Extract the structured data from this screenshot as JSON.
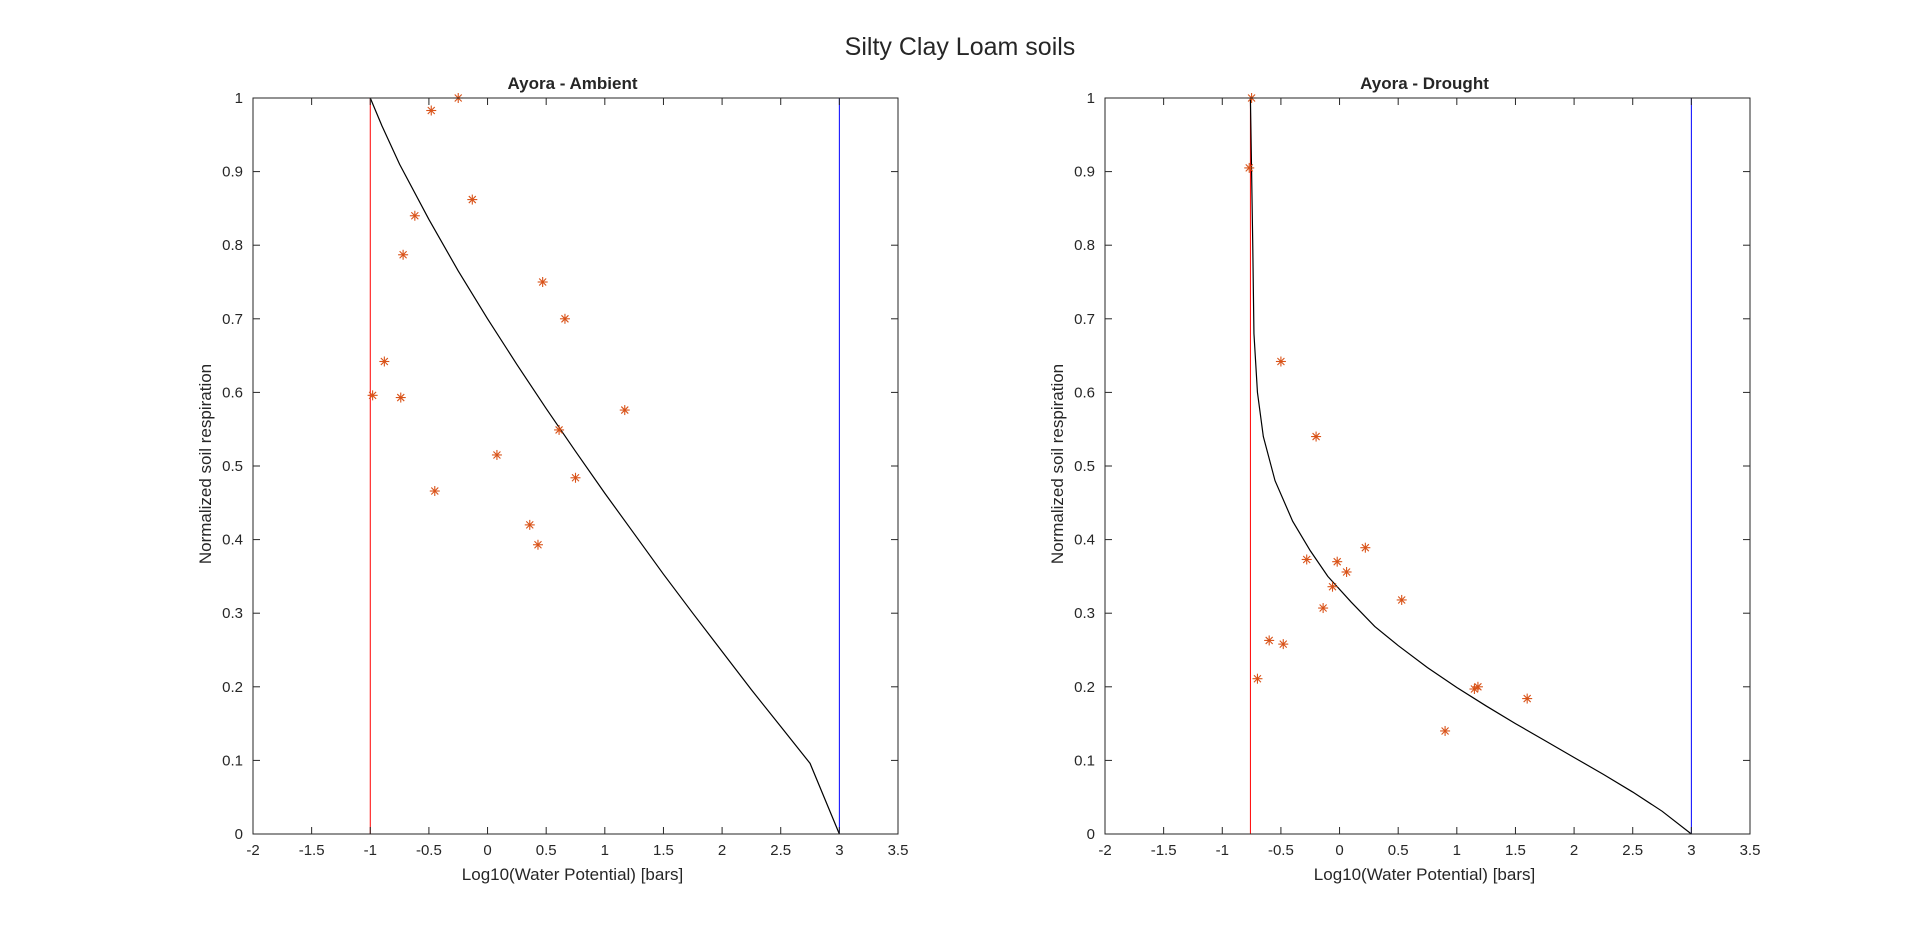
{
  "figure": {
    "title": "Silty Clay Loam soils"
  },
  "chart_data": [
    {
      "type": "scatter",
      "title": "Ayora - Ambient",
      "xlabel": "Log10(Water Potential) [bars]",
      "ylabel": "Normalized soil respiration",
      "xlim": [
        -2,
        3.5
      ],
      "ylim": [
        0,
        1
      ],
      "xticks": [
        -2,
        -1.5,
        -1,
        -0.5,
        0,
        0.5,
        1,
        1.5,
        2,
        2.5,
        3,
        3.5
      ],
      "xtick_labels": [
        "-2",
        "-1.5",
        "-1",
        "-0.5",
        "0",
        "0.5",
        "1",
        "1.5",
        "2",
        "2.5",
        "3",
        "3.5"
      ],
      "yticks": [
        0,
        0.1,
        0.2,
        0.3,
        0.4,
        0.5,
        0.6,
        0.7,
        0.8,
        0.9,
        1
      ],
      "ytick_labels": [
        "0",
        "0.1",
        "0.2",
        "0.3",
        "0.4",
        "0.5",
        "0.6",
        "0.7",
        "0.8",
        "0.9",
        "1"
      ],
      "grid": false,
      "points": {
        "x": [
          -0.25,
          -0.48,
          -0.13,
          -0.62,
          -0.72,
          0.47,
          0.66,
          -0.88,
          -0.98,
          -0.74,
          1.17,
          0.61,
          0.08,
          0.75,
          -0.45,
          0.36,
          0.43
        ],
        "y": [
          1.0,
          0.983,
          0.862,
          0.84,
          0.787,
          0.75,
          0.7,
          0.642,
          0.596,
          0.593,
          0.576,
          0.549,
          0.515,
          0.484,
          0.466,
          0.42,
          0.393
        ],
        "color": "#d95319",
        "marker": "asterisk"
      },
      "curve": {
        "x": [
          -1,
          -0.9,
          -0.75,
          -0.5,
          -0.25,
          0,
          0.25,
          0.5,
          0.75,
          1,
          1.25,
          1.5,
          1.75,
          2,
          2.25,
          2.5,
          2.75,
          3
        ],
        "y": [
          1.0,
          0.962,
          0.91,
          0.835,
          0.765,
          0.7,
          0.638,
          0.578,
          0.52,
          0.463,
          0.408,
          0.353,
          0.3,
          0.248,
          0.196,
          0.146,
          0.096,
          0.0
        ],
        "color": "#000000"
      },
      "vlines": [
        {
          "x": -1,
          "color": "#ff0000"
        },
        {
          "x": 3,
          "color": "#0000ff"
        }
      ]
    },
    {
      "type": "scatter",
      "title": "Ayora - Drought",
      "xlabel": "Log10(Water Potential) [bars]",
      "ylabel": "Normalized soil respiration",
      "xlim": [
        -2,
        3.5
      ],
      "ylim": [
        0,
        1
      ],
      "xticks": [
        -2,
        -1.5,
        -1,
        -0.5,
        0,
        0.5,
        1,
        1.5,
        2,
        2.5,
        3,
        3.5
      ],
      "xtick_labels": [
        "-2",
        "-1.5",
        "-1",
        "-0.5",
        "0",
        "0.5",
        "1",
        "1.5",
        "2",
        "2.5",
        "3",
        "3.5"
      ],
      "yticks": [
        0,
        0.1,
        0.2,
        0.3,
        0.4,
        0.5,
        0.6,
        0.7,
        0.8,
        0.9,
        1
      ],
      "ytick_labels": [
        "0",
        "0.1",
        "0.2",
        "0.3",
        "0.4",
        "0.5",
        "0.6",
        "0.7",
        "0.8",
        "0.9",
        "1"
      ],
      "grid": false,
      "points": {
        "x": [
          -0.75,
          -0.77,
          -0.5,
          -0.2,
          0.22,
          -0.28,
          -0.02,
          0.06,
          -0.06,
          -0.14,
          0.53,
          -0.6,
          -0.48,
          -0.7,
          1.18,
          1.15,
          1.6,
          0.9
        ],
        "y": [
          1.0,
          0.905,
          0.642,
          0.54,
          0.389,
          0.373,
          0.37,
          0.356,
          0.336,
          0.307,
          0.318,
          0.263,
          0.258,
          0.211,
          0.2,
          0.197,
          0.184,
          0.14
        ],
        "color": "#d95319",
        "marker": "asterisk"
      },
      "curve": {
        "x": [
          -0.76,
          -0.75,
          -0.74,
          -0.73,
          -0.7,
          -0.65,
          -0.55,
          -0.4,
          -0.25,
          -0.1,
          0.1,
          0.3,
          0.5,
          0.75,
          1,
          1.25,
          1.5,
          1.75,
          2,
          2.25,
          2.5,
          2.75,
          3
        ],
        "y": [
          1.0,
          0.9,
          0.8,
          0.68,
          0.6,
          0.54,
          0.48,
          0.425,
          0.385,
          0.35,
          0.315,
          0.282,
          0.256,
          0.226,
          0.199,
          0.174,
          0.15,
          0.127,
          0.104,
          0.081,
          0.057,
          0.031,
          0.0
        ],
        "color": "#000000"
      },
      "vlines": [
        {
          "x": -0.76,
          "color": "#ff0000"
        },
        {
          "x": 3,
          "color": "#0000ff"
        }
      ]
    }
  ]
}
